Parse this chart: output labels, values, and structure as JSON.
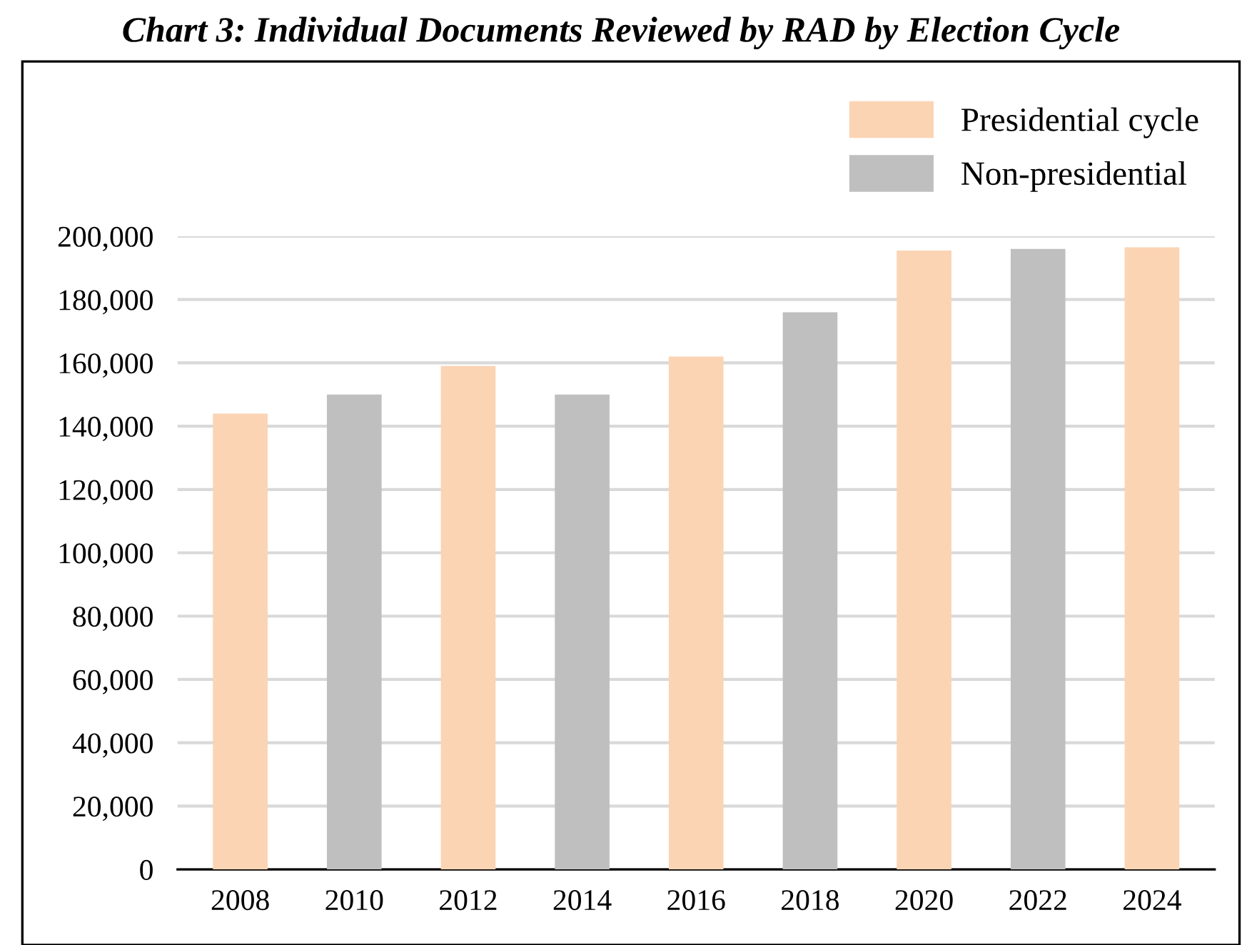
{
  "chart_data": {
    "type": "bar",
    "title": "Chart 3: Individual Documents Reviewed by RAD by Election Cycle",
    "categories": [
      "2008",
      "2010",
      "2012",
      "2014",
      "2016",
      "2018",
      "2020",
      "2022",
      "2024"
    ],
    "series": [
      {
        "name": "Presidential cycle",
        "color": "#fbd4b4",
        "values": [
          144000,
          null,
          159000,
          null,
          162000,
          null,
          195500,
          null,
          196500
        ]
      },
      {
        "name": "Non-presidential",
        "color": "#bfbfbf",
        "values": [
          null,
          150000,
          null,
          150000,
          null,
          176000,
          null,
          196000,
          null
        ]
      }
    ],
    "ylim": [
      0,
      200000
    ],
    "yticks": [
      {
        "value": 0,
        "label": "0"
      },
      {
        "value": 20000,
        "label": "20,000"
      },
      {
        "value": 40000,
        "label": "40,000"
      },
      {
        "value": 60000,
        "label": "60,000"
      },
      {
        "value": 80000,
        "label": "80,000"
      },
      {
        "value": 100000,
        "label": "100,000"
      },
      {
        "value": 120000,
        "label": "120,000"
      },
      {
        "value": 140000,
        "label": "140,000"
      },
      {
        "value": 160000,
        "label": "160,000"
      },
      {
        "value": 180000,
        "label": "180,000"
      },
      {
        "value": 200000,
        "label": "200,000"
      }
    ],
    "grid": "y",
    "legend": "top right"
  }
}
